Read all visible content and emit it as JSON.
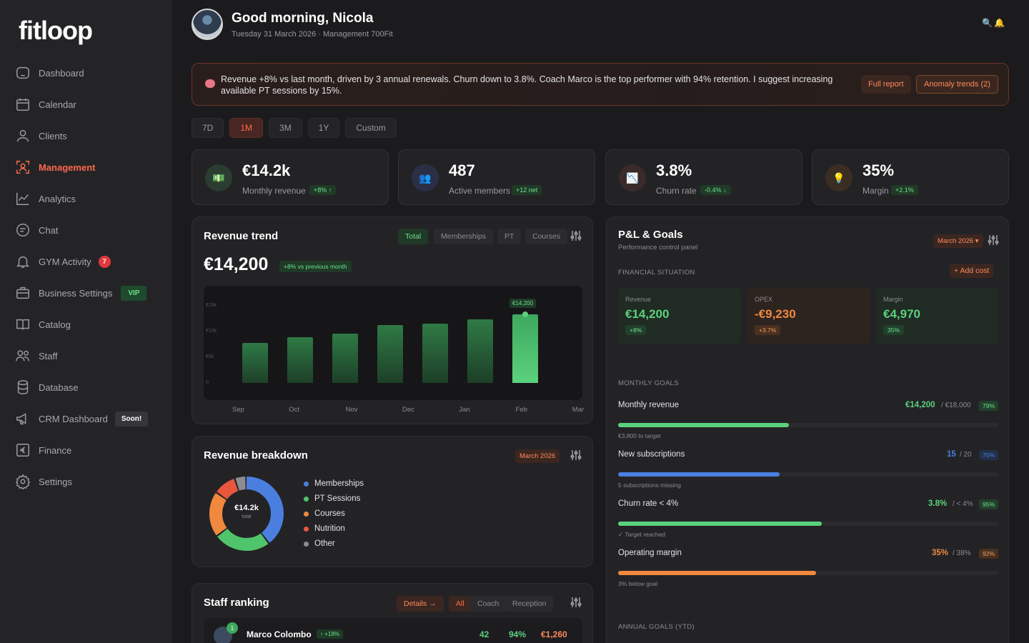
{
  "brand": {
    "logo": "fitloop"
  },
  "sidebar": {
    "items": [
      {
        "label": "Dashboard",
        "icon": "home-icon"
      },
      {
        "label": "Calendar",
        "icon": "calendar-icon"
      },
      {
        "label": "Clients",
        "icon": "user-icon"
      },
      {
        "label": "Management",
        "icon": "management-icon",
        "active": true
      },
      {
        "label": "Analytics",
        "icon": "chart-icon"
      },
      {
        "label": "Chat",
        "icon": "chat-icon"
      },
      {
        "label": "GYM Activity",
        "icon": "bell-icon",
        "badge": "7"
      },
      {
        "label": "Business Settings",
        "icon": "briefcase-icon",
        "badge": "VIP"
      },
      {
        "label": "Catalog",
        "icon": "book-icon"
      },
      {
        "label": "Staff",
        "icon": "staff-icon"
      },
      {
        "label": "Database",
        "icon": "database-icon"
      },
      {
        "label": "CRM Dashboard",
        "icon": "megaphone-icon",
        "badge": "Soon!"
      },
      {
        "label": "Finance",
        "icon": "euro-icon"
      },
      {
        "label": "Settings",
        "icon": "gear-icon"
      }
    ]
  },
  "header": {
    "greeting": "Good morning, Nicola",
    "subtitle": "Tuesday 31 March 2026 · Management 700Fit",
    "icons": [
      "search-icon",
      "bell-icon"
    ]
  },
  "banner": {
    "text": "Revenue +8% vs last month, driven by 3 annual renewals. Churn down to 3.8%. Coach Marco is the top performer with 94% retention. I suggest increasing available PT sessions by 15%.",
    "btn_report": "Full report",
    "btn_anomaly": "Anomaly trends (2)"
  },
  "periods": [
    "7D",
    "1M",
    "3M",
    "1Y",
    "Custom"
  ],
  "active_period": "1M",
  "kpis": [
    {
      "value": "€14.2k",
      "label": "Monthly revenue",
      "delta": "+8% ↑",
      "icon": "cash-icon",
      "color": "#2a3d30"
    },
    {
      "value": "487",
      "label": "Active members",
      "delta": "+12 net",
      "icon": "members-icon",
      "color": "#2a2f45"
    },
    {
      "value": "3.8%",
      "label": "Churn rate",
      "delta": "-0.4% ↓",
      "icon": "churn-icon",
      "color": "#3a2a2a"
    },
    {
      "value": "35%",
      "label": "Margin",
      "delta": "+2.1%",
      "icon": "bulb-icon",
      "color": "#3a2d22"
    }
  ],
  "revenue_trend": {
    "title": "Revenue trend",
    "tabs": [
      "Total",
      "Memberships",
      "PT",
      "Courses"
    ],
    "total": "€14,200",
    "delta": "+8% vs previous month",
    "y_ticks": [
      "€15k",
      "€10k",
      "€5k",
      "0"
    ],
    "tip": "€14,200"
  },
  "chart_data": {
    "type": "bar",
    "categories": [
      "Sep",
      "Oct",
      "Nov",
      "Dec",
      "Jan",
      "Feb",
      "Mar"
    ],
    "values": [
      8300,
      9500,
      10200,
      11900,
      12300,
      13100,
      14200
    ],
    "ylim": [
      0,
      16500
    ],
    "y_ticks": [
      "€15k",
      "€10k",
      "€5k",
      "0"
    ],
    "grid": false
  },
  "revenue_breakdown": {
    "title": "Revenue breakdown",
    "tag": "March 2026",
    "center_value": "€14.2k",
    "center_label": "total",
    "slices": [
      {
        "name": "Memberships",
        "value": 40,
        "color": "#4a7fe0"
      },
      {
        "name": "PT Sessions",
        "value": 25,
        "color": "#4fc46b"
      },
      {
        "name": "Courses",
        "value": 20,
        "color": "#f0883e"
      },
      {
        "name": "Nutrition",
        "value": 10,
        "color": "#e8563e"
      },
      {
        "name": "Other",
        "value": 5,
        "color": "#8c8c92"
      }
    ]
  },
  "staff_ranking": {
    "title": "Staff ranking",
    "tabs": [
      "Details →",
      "All",
      "Coach",
      "Reception"
    ],
    "rows": [
      {
        "rank": "1",
        "name": "Marco Colombo",
        "trend": "↑ +18%",
        "clients": "42",
        "retention": "94%",
        "revenue": "€1,260"
      }
    ]
  },
  "pl_goals": {
    "title": "P&L & Goals",
    "subtitle": "Performance control panel",
    "tag": "March 2026 ▾",
    "fin_label": "FINANCIAL SITUATION",
    "add_cost": "+ Add cost",
    "cards": [
      {
        "label": "Revenue",
        "value": "€14,200",
        "delta": "+8%",
        "color": "#5bd17d",
        "bg": "#1f2b23",
        "dbg": "#22402b"
      },
      {
        "label": "OPEX",
        "value": "-€9,230",
        "delta": "+3.7%",
        "color": "#f0883e",
        "bg": "#2d2420",
        "dbg": "#4a3020"
      },
      {
        "label": "Margin",
        "value": "€4,970",
        "delta": "35%",
        "color": "#5bd17d",
        "bg": "#1f2b23",
        "dbg": "#22402b"
      }
    ],
    "goals_label": "MONTHLY GOALS",
    "goals": [
      {
        "name": "Monthly revenue",
        "value": "€14,200",
        "target": "/ €18,000",
        "pct": "79%",
        "progress": 0.45,
        "color": "#5bd17d",
        "note": "€3,800 to target"
      },
      {
        "name": "New subscriptions",
        "value": "15",
        "target": "/ 20",
        "pct": "75%",
        "progress": 0.425,
        "color": "#4a7fe0",
        "note": "5 subscriptions missing"
      },
      {
        "name": "Churn rate < 4%",
        "value": "3.8%",
        "target": "/ < 4%",
        "pct": "95%",
        "progress": 0.535,
        "color": "#5bd17d",
        "note": "✓ Target reached"
      },
      {
        "name": "Operating margin",
        "value": "35%",
        "target": "/ 38%",
        "pct": "92%",
        "progress": 0.52,
        "color": "#f0883e",
        "note": "3% below goal"
      }
    ],
    "annual_label": "ANNUAL GOALS (YTD)"
  }
}
